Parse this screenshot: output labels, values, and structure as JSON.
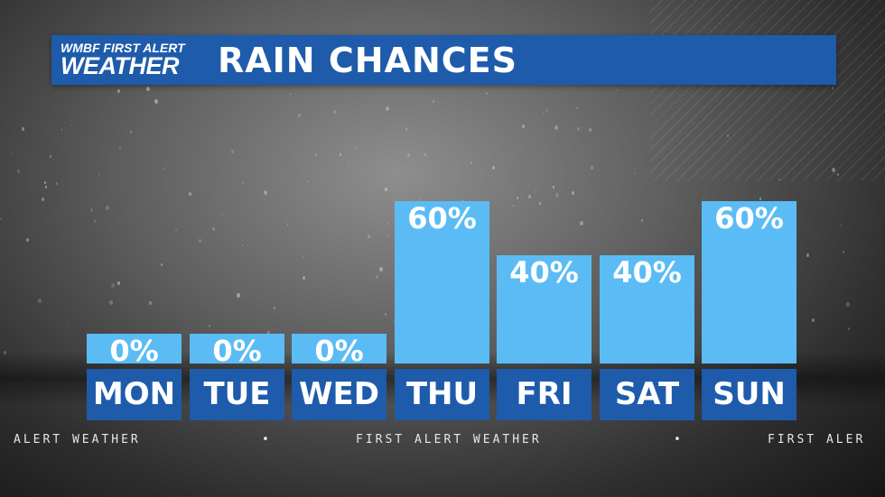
{
  "header": {
    "logo_top": "WMBF FIRST ALERT",
    "logo_bottom": "WEATHER",
    "title": "RAIN CHANCES"
  },
  "chart_data": {
    "type": "bar",
    "categories": [
      "MON",
      "TUE",
      "WED",
      "THU",
      "FRI",
      "SAT",
      "SUN"
    ],
    "values": [
      0,
      0,
      0,
      60,
      40,
      40,
      60
    ],
    "data_labels": [
      "0%",
      "0%",
      "0%",
      "60%",
      "40%",
      "40%",
      "60%"
    ],
    "title": "RAIN CHANCES",
    "ylim": [
      0,
      60
    ]
  },
  "ticker": {
    "left": "ALERT WEATHER",
    "mid": "FIRST ALERT WEATHER",
    "right": "FIRST ALER",
    "dot": "•"
  },
  "colors": {
    "header_bg": "#1e5bab",
    "bar": "#5bbcf5",
    "day_bg": "#1e5bab"
  }
}
